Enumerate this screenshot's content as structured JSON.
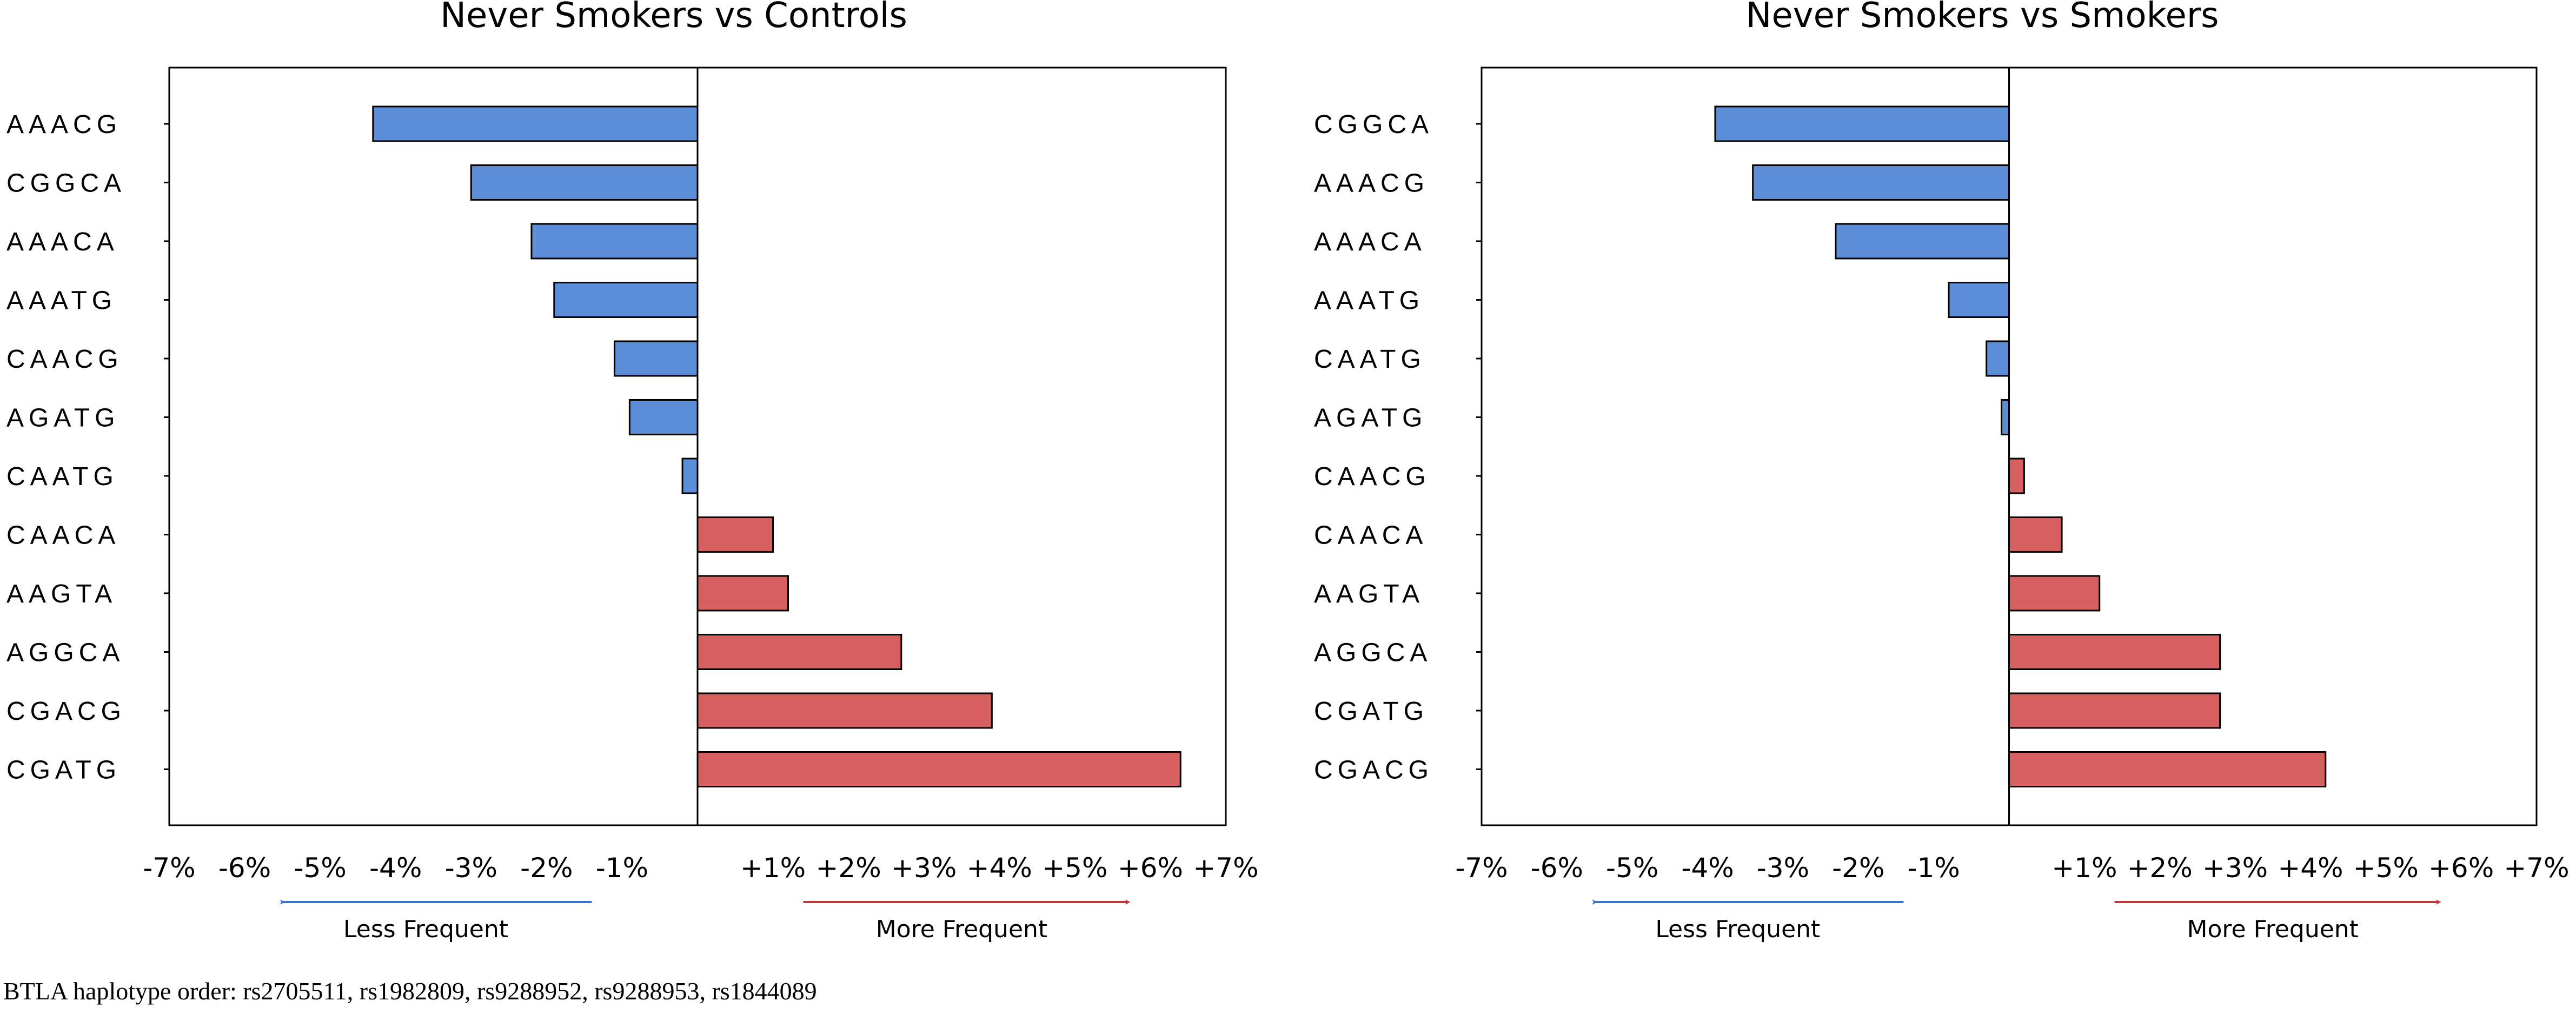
{
  "chart_data": [
    {
      "type": "bar",
      "orientation": "horizontal",
      "title": "Never Smokers vs Controls",
      "categories": [
        "AAACG",
        "CGGCA",
        "AAACA",
        "AAATG",
        "CAACG",
        "AGATG",
        "CAATG",
        "CAACA",
        "AAGTA",
        "AGGCA",
        "CGACG",
        "CGATG"
      ],
      "values": [
        -4.3,
        -3.0,
        -2.2,
        -1.9,
        -1.1,
        -0.9,
        -0.2,
        1.0,
        1.2,
        2.7,
        3.9,
        6.4
      ],
      "xlim": [
        -7,
        7
      ],
      "tick_labels": [
        "-7%",
        "-6%",
        "-5%",
        "-4%",
        "-3%",
        "-2%",
        "-1%",
        "+1%",
        "+2%",
        "+3%",
        "+4%",
        "+5%",
        "+6%",
        "+7%"
      ],
      "left_label": "Less Frequent",
      "right_label": "More Frequent",
      "xlabel": "",
      "ylabel": "",
      "grid": false
    },
    {
      "type": "bar",
      "orientation": "horizontal",
      "title": "Never Smokers vs Smokers",
      "categories": [
        "CGGCA",
        "AAACG",
        "AAACA",
        "AAATG",
        "CAATG",
        "AGATG",
        "CAACG",
        "CAACA",
        "AAGTA",
        "AGGCA",
        "CGATG",
        "CGACG"
      ],
      "values": [
        -3.9,
        -3.4,
        -2.3,
        -0.8,
        -0.3,
        -0.1,
        0.2,
        0.7,
        1.2,
        2.8,
        2.8,
        4.2
      ],
      "xlim": [
        -7,
        7
      ],
      "tick_labels": [
        "-7%",
        "-6%",
        "-5%",
        "-4%",
        "-3%",
        "-2%",
        "-1%",
        "+1%",
        "+2%",
        "+3%",
        "+4%",
        "+5%",
        "+6%",
        "+7%"
      ],
      "left_label": "Less Frequent",
      "right_label": "More Frequent",
      "xlabel": "",
      "ylabel": "",
      "grid": false
    }
  ],
  "colors": {
    "negative": "#5b8ed6",
    "positive": "#d65f5f",
    "arrow_left": "#3a74cc",
    "arrow_right": "#b83a3a"
  },
  "footnote": "BTLA haplotype order: rs2705511, rs1982809, rs9288952, rs9288953, rs1844089"
}
